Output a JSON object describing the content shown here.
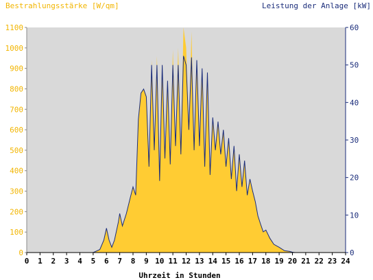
{
  "chart_data": {
    "type": "area",
    "title_left": "Bestrahlungsstärke [W/qm]",
    "title_right": "Leistung der Anlage [kW]",
    "xlabel": "Uhrzeit in Stunden",
    "x_ticks": [
      "0",
      "1",
      "2",
      "3",
      "4",
      "5",
      "6",
      "7",
      "8",
      "9",
      "10",
      "11",
      "12",
      "13",
      "14",
      "15",
      "16",
      "17",
      "18",
      "19",
      "20",
      "21",
      "22",
      "23",
      "24"
    ],
    "y_left_ticks": [
      "0",
      "100",
      "200",
      "300",
      "400",
      "500",
      "600",
      "700",
      "800",
      "900",
      "1000",
      "1100"
    ],
    "y_right_ticks": [
      "0",
      "10",
      "20",
      "30",
      "40",
      "50",
      "60"
    ],
    "xlim": [
      0,
      24
    ],
    "ylim_left": [
      0,
      1100
    ],
    "ylim_right": [
      0,
      60
    ],
    "grid": false,
    "colors": {
      "plot_bg": "#d9d9d9",
      "irradiance": "#ffcc33",
      "power": "#1a2c7a",
      "left_axis": "#f2b500",
      "right_axis": "#1a2c7a"
    },
    "series": [
      {
        "name": "Bestrahlungsstärke [W/qm]",
        "axis": "left",
        "style": "area",
        "x": [
          5.0,
          5.5,
          5.8,
          6.0,
          6.2,
          6.4,
          6.6,
          6.9,
          7.0,
          7.2,
          7.5,
          7.8,
          8.0,
          8.2,
          8.4,
          8.6,
          8.8,
          9.0,
          9.2,
          9.4,
          9.6,
          9.8,
          10.0,
          10.2,
          10.4,
          10.6,
          10.8,
          11.0,
          11.2,
          11.4,
          11.6,
          11.8,
          12.0,
          12.2,
          12.4,
          12.6,
          12.8,
          13.0,
          13.2,
          13.4,
          13.6,
          13.8,
          14.0,
          14.2,
          14.4,
          14.6,
          14.8,
          15.0,
          15.2,
          15.4,
          15.6,
          15.8,
          16.0,
          16.2,
          16.4,
          16.6,
          16.8,
          17.0,
          17.2,
          17.4,
          17.6,
          17.8,
          18.0,
          18.3,
          18.6,
          19.0,
          19.4,
          19.8,
          20.0,
          20.2
        ],
        "y": [
          0,
          15,
          60,
          120,
          60,
          25,
          60,
          150,
          190,
          130,
          190,
          270,
          320,
          280,
          650,
          780,
          800,
          760,
          420,
          940,
          500,
          960,
          350,
          920,
          460,
          840,
          430,
          990,
          520,
          1000,
          480,
          1100,
          1000,
          600,
          1080,
          500,
          940,
          520,
          900,
          420,
          880,
          380,
          660,
          500,
          640,
          480,
          600,
          420,
          560,
          360,
          520,
          300,
          480,
          320,
          450,
          280,
          360,
          300,
          250,
          180,
          140,
          100,
          110,
          70,
          40,
          25,
          10,
          5,
          2,
          0
        ]
      },
      {
        "name": "Leistung der Anlage [kW]",
        "axis": "right",
        "style": "line",
        "x": [
          5.0,
          5.5,
          5.8,
          6.0,
          6.2,
          6.4,
          6.6,
          6.9,
          7.0,
          7.2,
          7.5,
          7.8,
          8.0,
          8.2,
          8.4,
          8.6,
          8.8,
          9.0,
          9.2,
          9.4,
          9.6,
          9.8,
          10.0,
          10.2,
          10.4,
          10.6,
          10.8,
          11.0,
          11.2,
          11.4,
          11.6,
          11.8,
          12.0,
          12.2,
          12.4,
          12.6,
          12.8,
          13.0,
          13.2,
          13.4,
          13.6,
          13.8,
          14.0,
          14.2,
          14.4,
          14.6,
          14.8,
          15.0,
          15.2,
          15.4,
          15.6,
          15.8,
          16.0,
          16.2,
          16.4,
          16.6,
          16.8,
          17.0,
          17.2,
          17.4,
          17.6,
          17.8,
          18.0,
          18.3,
          18.6,
          19.0,
          19.4,
          19.8,
          20.0,
          20.2
        ],
        "y": [
          0,
          0.8,
          3.3,
          6.5,
          3.3,
          1.4,
          3.3,
          8.2,
          10.4,
          7.1,
          10.4,
          14.7,
          17.5,
          15.3,
          35.5,
          42.5,
          43.6,
          41.5,
          22.9,
          50,
          27.3,
          50,
          19.1,
          50,
          25.1,
          45.8,
          23.5,
          50,
          28.4,
          50,
          26.2,
          52.4,
          50,
          32.7,
          52,
          27.3,
          51.3,
          28.4,
          49.1,
          22.9,
          48,
          20.7,
          36,
          27.3,
          34.9,
          26.2,
          32.7,
          22.9,
          30.5,
          19.6,
          28.4,
          16.4,
          26.2,
          17.5,
          24.5,
          15.3,
          19.6,
          16.4,
          13.6,
          9.8,
          7.6,
          5.5,
          6,
          3.8,
          2.2,
          1.4,
          0.5,
          0.3,
          0.1,
          0
        ]
      }
    ]
  }
}
